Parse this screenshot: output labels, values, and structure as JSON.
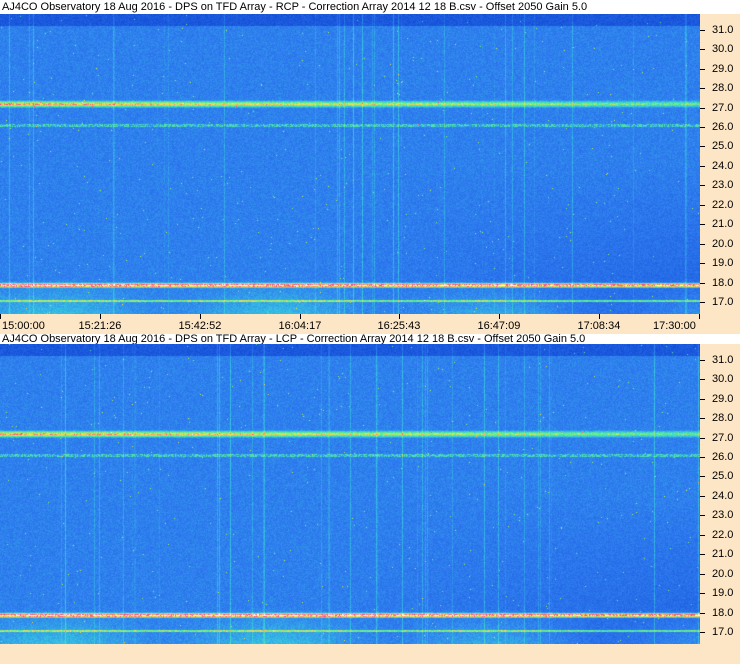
{
  "chart_data": [
    {
      "type": "heatmap",
      "title": "AJ4CO Observatory 18 Aug 2016  -  DPS on TFD Array  -  RCP  -  Correction Array 2014 12 18 B.csv  -  Offset 2050  Gain 5.0",
      "polarization": "RCP",
      "y_ticks": [
        "31.0",
        "30.0",
        "29.0",
        "28.0",
        "27.0",
        "26.0",
        "25.0",
        "24.0",
        "23.0",
        "22.0",
        "21.0",
        "20.0",
        "19.0",
        "18.0",
        "17.0"
      ],
      "y_values": [
        31,
        30,
        29,
        28,
        27,
        26,
        25,
        24,
        23,
        22,
        21,
        20,
        19,
        18,
        17
      ],
      "ylim": [
        16.4,
        31.8
      ],
      "x_ticks": [
        "15:00:00",
        "15:21:26",
        "15:42:52",
        "16:04:17",
        "16:25:43",
        "16:47:09",
        "17:08:34",
        "17:30:00"
      ],
      "xlim": [
        "15:00:00",
        "17:30:00"
      ],
      "bright_bands_y": [
        27.2,
        26.1,
        17.9,
        17.1
      ],
      "colormap": [
        "#0a2a9e",
        "#1550d8",
        "#2f7cf0",
        "#37c9e0",
        "#5ef08a",
        "#ffe14a",
        "#ff3a7a",
        "#ffffff"
      ]
    },
    {
      "type": "heatmap",
      "title": "AJ4CO Observatory 18 Aug 2016  -  DPS on TFD Array  -  LCP  -  Correction Array 2014 12 18 B.csv  -  Offset 2050  Gain 5.0",
      "polarization": "LCP",
      "y_ticks": [
        "31.0",
        "30.0",
        "29.0",
        "28.0",
        "27.0",
        "26.0",
        "25.0",
        "24.0",
        "23.0",
        "22.0",
        "21.0",
        "20.0",
        "19.0",
        "18.0",
        "17.0"
      ],
      "y_values": [
        31,
        30,
        29,
        28,
        27,
        26,
        25,
        24,
        23,
        22,
        21,
        20,
        19,
        18,
        17
      ],
      "ylim": [
        16.4,
        31.8
      ],
      "x_ticks": [],
      "xlim": [
        "15:00:00",
        "17:30:00"
      ],
      "bright_bands_y": [
        27.2,
        26.1,
        17.9,
        17.1
      ],
      "colormap": [
        "#0a2a9e",
        "#1550d8",
        "#2f7cf0",
        "#37c9e0",
        "#5ef08a",
        "#ffe14a",
        "#ff3a7a",
        "#ffffff"
      ]
    }
  ]
}
